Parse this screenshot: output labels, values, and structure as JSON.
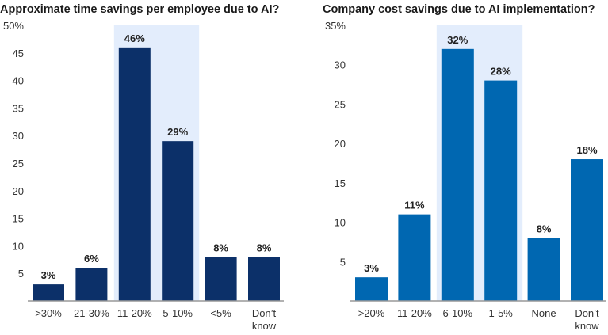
{
  "chart_data": [
    {
      "type": "bar",
      "title": "Approximate time savings per employee due to AI?",
      "categories": [
        ">30%",
        "21-30%",
        "11-20%",
        "5-10%",
        "<5%",
        "Don’t know"
      ],
      "values": [
        3,
        6,
        46,
        29,
        8,
        8
      ],
      "data_labels": [
        "3%",
        "6%",
        "46%",
        "29%",
        "8%",
        "8%"
      ],
      "ylim": [
        0,
        50
      ],
      "yticks": [
        5,
        10,
        15,
        20,
        25,
        30,
        35,
        40,
        45,
        50
      ],
      "ytick_labels": [
        "5",
        "10",
        "15",
        "20",
        "25",
        "30",
        "35",
        "40",
        "45",
        "50%"
      ],
      "highlighted_categories": [
        "11-20%",
        "5-10%"
      ],
      "bar_color": "#0c3069",
      "highlight_color": "#e3edfc",
      "grid": false
    },
    {
      "type": "bar",
      "title": "Company cost savings due to AI implementation?",
      "categories": [
        ">20%",
        "11-20%",
        "6-10%",
        "1-5%",
        "None",
        "Don’t know"
      ],
      "values": [
        3,
        11,
        32,
        28,
        8,
        18
      ],
      "data_labels": [
        "3%",
        "11%",
        "32%",
        "28%",
        "8%",
        "18%"
      ],
      "ylim": [
        0,
        35
      ],
      "yticks": [
        5,
        10,
        15,
        20,
        25,
        30,
        35
      ],
      "ytick_labels": [
        "5",
        "10",
        "15",
        "20",
        "25",
        "30",
        "35%"
      ],
      "highlighted_categories": [
        "6-10%",
        "1-5%"
      ],
      "bar_color": "#0067b1",
      "highlight_color": "#e3edfc",
      "grid": false
    }
  ]
}
